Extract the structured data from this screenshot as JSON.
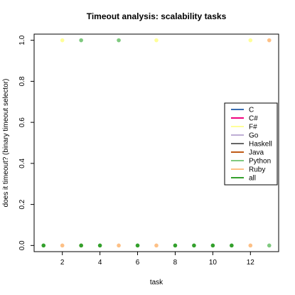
{
  "chart_data": {
    "type": "scatter",
    "title": "Timeout analysis: scalability tasks",
    "xlabel": "task",
    "ylabel": "does it timeout? (binary timeout selector)",
    "xlim": [
      0.5,
      13.5
    ],
    "ylim": [
      -0.03,
      1.03
    ],
    "x_ticks": [
      2,
      4,
      6,
      8,
      10,
      12
    ],
    "y_ticks": [
      0.0,
      0.2,
      0.4,
      0.6,
      0.8,
      1.0
    ],
    "y_tick_labels": [
      "0.0",
      "0.2",
      "0.4",
      "0.6",
      "0.8",
      "1.0"
    ],
    "grid": false,
    "legend_position": "right",
    "series": [
      {
        "name": "C",
        "color": "#386cb0",
        "points": []
      },
      {
        "name": "C#",
        "color": "#f0027f",
        "points": []
      },
      {
        "name": "F#",
        "color": "#ffff99",
        "points": [
          [
            2,
            1
          ],
          [
            7,
            1
          ],
          [
            12,
            1
          ]
        ]
      },
      {
        "name": "Go",
        "color": "#beaed4",
        "points": []
      },
      {
        "name": "Haskell",
        "color": "#666666",
        "points": []
      },
      {
        "name": "Java",
        "color": "#bf5b17",
        "points": []
      },
      {
        "name": "Python",
        "color": "#7fc97f",
        "points": [
          [
            3,
            1
          ],
          [
            5,
            1
          ],
          [
            13,
            0
          ]
        ]
      },
      {
        "name": "Ruby",
        "color": "#fdc086",
        "points": [
          [
            2,
            0
          ],
          [
            3,
            0
          ],
          [
            5,
            0
          ],
          [
            7,
            0
          ],
          [
            12,
            0
          ],
          [
            13,
            1
          ]
        ]
      },
      {
        "name": "all",
        "color": "#33a02c",
        "points": [
          [
            1,
            0
          ],
          [
            3,
            0
          ],
          [
            4,
            0
          ],
          [
            6,
            0
          ],
          [
            8,
            0
          ],
          [
            9,
            0
          ],
          [
            10,
            0
          ],
          [
            11,
            0
          ]
        ]
      }
    ]
  }
}
